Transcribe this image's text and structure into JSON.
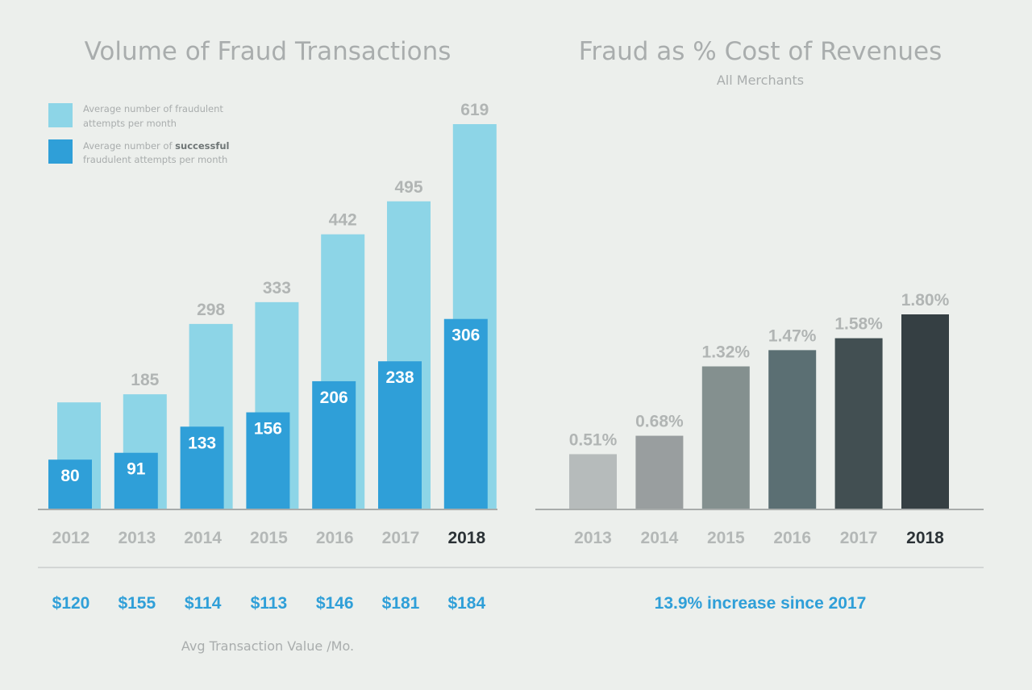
{
  "chart_data": [
    {
      "type": "bar",
      "title": "Volume of Fraud Transactions",
      "categories": [
        "2012",
        "2013",
        "2014",
        "2015",
        "2016",
        "2017",
        "2018"
      ],
      "highlight_category": "2018",
      "series": [
        {
          "name": "Average number of fraudulent attempts per month",
          "legend_lines": [
            "Average number of fraudulent",
            "attempts  per month"
          ],
          "color": "#8dd5e7",
          "values": [
            172,
            185,
            298,
            333,
            442,
            495,
            619
          ],
          "labels": [
            "",
            "185",
            "298",
            "333",
            "442",
            "495",
            "619"
          ]
        },
        {
          "name": "Average number of successful fraudulent attempts per month",
          "legend_lines": [
            "Average number of ",
            "successful",
            "fraudulent attempts  per month"
          ],
          "color": "#2f9fd8",
          "values": [
            80,
            91,
            133,
            156,
            206,
            238,
            306
          ],
          "labels": [
            "80",
            "91",
            "133",
            "156",
            "206",
            "238",
            "306"
          ]
        }
      ],
      "ylim": [
        0,
        650
      ],
      "legend_position": "top-left",
      "avg_transaction_values": [
        "$120",
        "$155",
        "$114",
        "$113",
        "$146",
        "$181",
        "$184"
      ],
      "avg_transaction_caption": "Avg Transaction Value /Mo."
    },
    {
      "type": "bar",
      "title": "Fraud as % Cost of Revenues",
      "subtitle": "All Merchants",
      "categories": [
        "2013",
        "2014",
        "2015",
        "2016",
        "2017",
        "2018"
      ],
      "highlight_category": "2018",
      "values": [
        0.51,
        0.68,
        1.32,
        1.47,
        1.58,
        1.8
      ],
      "labels": [
        "0.51%",
        "0.68%",
        "1.32%",
        "1.47%",
        "1.58%",
        "1.80%"
      ],
      "colors": [
        "#b6bbbb",
        "#999e9f",
        "#84908f",
        "#5b6f73",
        "#424f52",
        "#353f43"
      ],
      "ylim": [
        0,
        3.2
      ],
      "note": "13.9% increase since 2017"
    }
  ],
  "colors": {
    "background": "#ecefec",
    "axis": "#a8acab",
    "divider": "#d3d6d4"
  }
}
